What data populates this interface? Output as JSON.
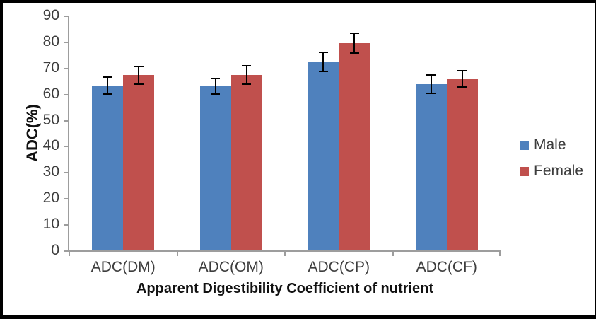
{
  "chart_data": {
    "type": "bar",
    "title": "",
    "xlabel": "Apparent Digestibility Coefficient of nutrient",
    "ylabel": "ADC(%)",
    "categories": [
      "ADC(DM)",
      "ADC(OM)",
      "ADC(CP)",
      "ADC(CF)"
    ],
    "series": [
      {
        "name": "Male",
        "color": "#4F81BD",
        "values": [
          63.2,
          62.8,
          72.2,
          63.7
        ],
        "errors": [
          3.2,
          3.0,
          3.7,
          3.4
        ]
      },
      {
        "name": "Female",
        "color": "#C0504D",
        "values": [
          67.2,
          67.2,
          79.4,
          65.7
        ],
        "errors": [
          3.4,
          3.5,
          3.9,
          3.2
        ]
      }
    ],
    "error_bars": true,
    "ylim": [
      0,
      90
    ],
    "yticks": [
      0,
      10,
      20,
      30,
      40,
      50,
      60,
      70,
      80,
      90
    ],
    "grid": false,
    "legend_position": "right",
    "axis_color": "#9d9d9d",
    "error_bar_color": "#000000"
  }
}
